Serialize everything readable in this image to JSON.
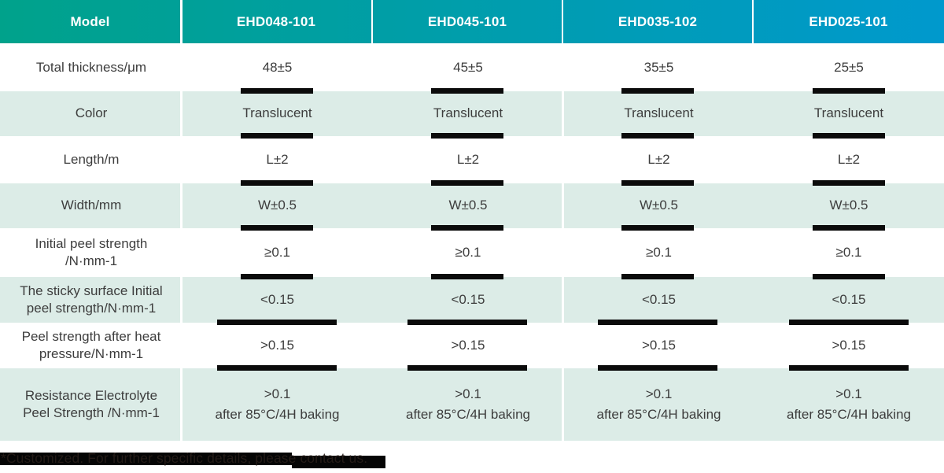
{
  "table": {
    "header": {
      "model_label": "Model",
      "columns": [
        "EHD048-101",
        "EHD045-101",
        "EHD035-102",
        "EHD025-101"
      ]
    },
    "rows": [
      {
        "label1": "Total thickness/μm",
        "label2": "",
        "values": [
          "48±5",
          "45±5",
          "35±5",
          "25±5"
        ]
      },
      {
        "label1": "Color",
        "label2": "",
        "values": [
          "Translucent",
          "Translucent",
          "Translucent",
          "Translucent"
        ]
      },
      {
        "label1": "Length/m",
        "label2": "",
        "values": [
          "L±2",
          "L±2",
          "L±2",
          "L±2"
        ]
      },
      {
        "label1": "Width/mm",
        "label2": "",
        "values": [
          "W±0.5",
          "W±0.5",
          "W±0.5",
          "W±0.5"
        ]
      },
      {
        "label1": "Initial peel strength",
        "label2": "/N·mm-1",
        "values": [
          "≥0.1",
          "≥0.1",
          "≥0.1",
          "≥0.1"
        ]
      },
      {
        "label1": "The sticky surface Initial",
        "label2": "peel strength/N·mm-1",
        "values": [
          "<0.15",
          "<0.15",
          "<0.15",
          "<0.15"
        ]
      },
      {
        "label1": "Peel strength after heat",
        "label2": "pressure/N·mm-1",
        "values": [
          ">0.15",
          ">0.15",
          ">0.15",
          ">0.15"
        ]
      },
      {
        "label1": "Resistance Electrolyte",
        "label2": "Peel Strength /N·mm-1",
        "values": [
          ">0.1",
          ">0.1",
          ">0.1",
          ">0.1"
        ],
        "sub": "after 85°C/4H baking"
      }
    ],
    "footnote": "*Customized. For further specific details, please contact us."
  },
  "colors": {
    "header_gradient_start": "#00a28b",
    "header_gradient_end": "#0099cd",
    "mint_row_background": "#dcece7",
    "accent_bar": "#0b0b0b"
  }
}
